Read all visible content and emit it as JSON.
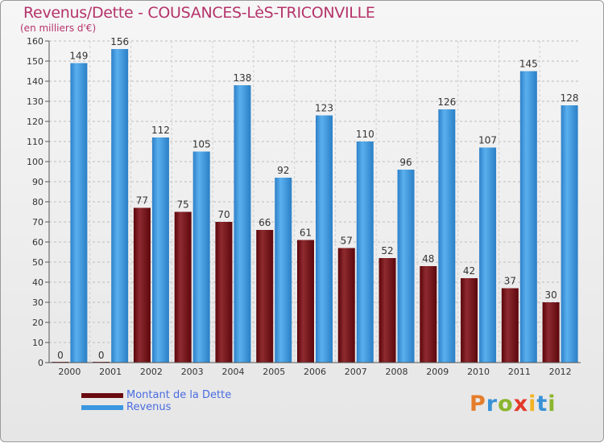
{
  "header": {
    "title": "Revenus/Dette - COUSANCES-LèS-TRICONVILLE",
    "subtitle": "(en milliers d'€)"
  },
  "legend": {
    "items": [
      {
        "label": "Montant de la Dette",
        "color": "#7a0e14"
      },
      {
        "label": "Revenus",
        "color": "#3b97e0"
      }
    ]
  },
  "logo": {
    "letters": [
      {
        "ch": "P",
        "color": "#e67d2a"
      },
      {
        "ch": "r",
        "color": "#3a92d6"
      },
      {
        "ch": "o",
        "color": "#8bb52d"
      },
      {
        "ch": "x",
        "color": "#e23a2a"
      },
      {
        "ch": "i",
        "color": "#f2b322"
      },
      {
        "ch": "t",
        "color": "#3a92d6"
      },
      {
        "ch": "i",
        "color": "#8bb52d"
      }
    ]
  },
  "chart_data": {
    "type": "bar",
    "title": "Revenus/Dette - COUSANCES-LèS-TRICONVILLE",
    "subtitle": "(en milliers d'€)",
    "categories": [
      "2000",
      "2001",
      "2002",
      "2003",
      "2004",
      "2005",
      "2006",
      "2007",
      "2008",
      "2009",
      "2010",
      "2011",
      "2012"
    ],
    "series": [
      {
        "name": "Montant de la Dette",
        "color": "#7a0e14",
        "values": [
          0,
          0,
          77,
          75,
          70,
          66,
          61,
          57,
          52,
          48,
          42,
          37,
          30
        ]
      },
      {
        "name": "Revenus",
        "color": "#3b97e0",
        "values": [
          149,
          156,
          112,
          105,
          138,
          92,
          123,
          110,
          96,
          126,
          107,
          145,
          128
        ]
      }
    ],
    "ylim": [
      0,
      160
    ],
    "yticks": [
      0,
      10,
      20,
      30,
      40,
      50,
      60,
      70,
      80,
      90,
      100,
      110,
      120,
      130,
      140,
      150,
      160
    ],
    "grid": true,
    "legend_position": "bottom-left",
    "data_labels": true
  }
}
